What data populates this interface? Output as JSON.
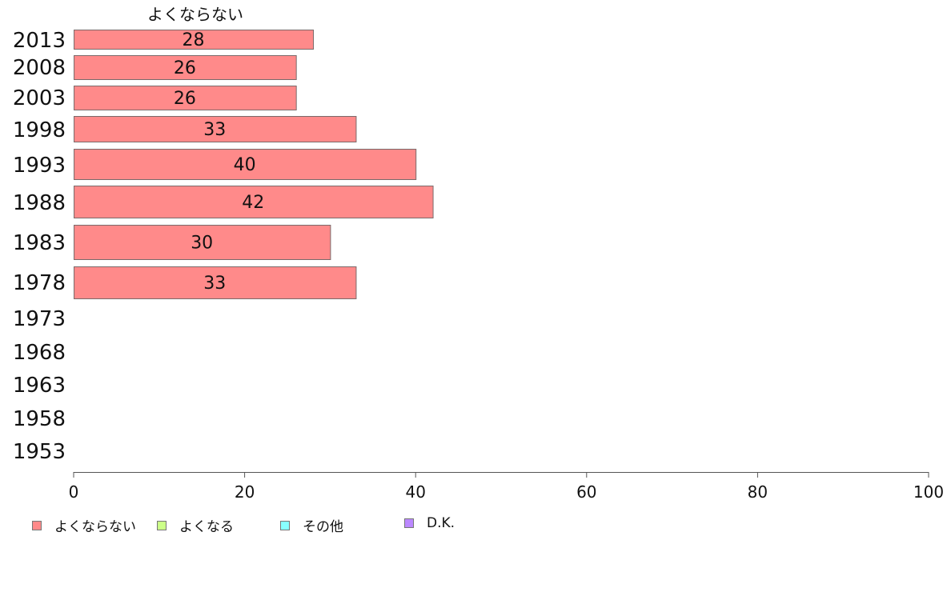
{
  "chart_data": {
    "type": "bar",
    "orientation": "horizontal",
    "title": "よくならない",
    "categories": [
      "2013",
      "2008",
      "2003",
      "1998",
      "1993",
      "1988",
      "1983",
      "1978",
      "1973",
      "1968",
      "1963",
      "1958",
      "1953"
    ],
    "series": [
      {
        "name": "よくならない",
        "color": "#ff8a8a",
        "values": [
          28,
          26,
          26,
          33,
          40,
          42,
          30,
          33,
          null,
          null,
          null,
          null,
          null
        ]
      },
      {
        "name": "よくなる",
        "color": "#ccff88",
        "values": [
          null,
          null,
          null,
          null,
          null,
          null,
          null,
          null,
          null,
          null,
          null,
          null,
          null
        ]
      },
      {
        "name": "その他",
        "color": "#88ffff",
        "values": [
          null,
          null,
          null,
          null,
          null,
          null,
          null,
          null,
          null,
          null,
          null,
          null,
          null
        ]
      },
      {
        "name": "D.K.",
        "color": "#bb88ff",
        "values": [
          null,
          null,
          null,
          null,
          null,
          null,
          null,
          null,
          null,
          null,
          null,
          null,
          null
        ]
      }
    ],
    "data_labels": [
      "28",
      "26",
      "26",
      "33",
      "40",
      "42",
      "30",
      "33"
    ],
    "xlim": [
      0,
      100
    ],
    "x_ticks": [
      "0",
      "20",
      "40",
      "60",
      "80",
      "100"
    ],
    "xlabel": "",
    "ylabel": "",
    "grid": false,
    "legend_position": "bottom-left"
  }
}
